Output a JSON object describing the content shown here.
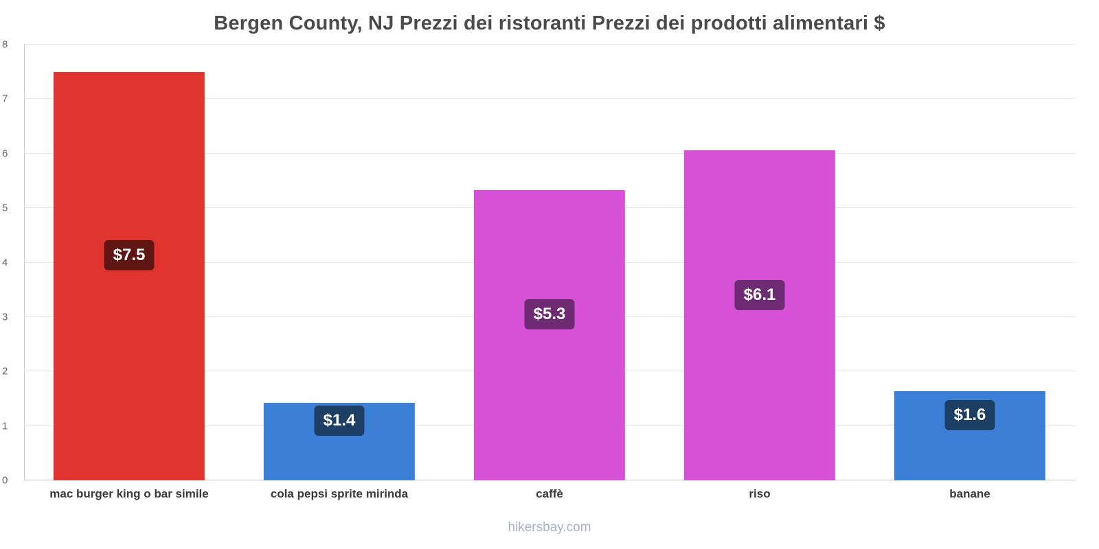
{
  "title": "Bergen County, NJ Prezzi dei ristoranti Prezzi dei prodotti alimentari $",
  "footer": "hikersbay.com",
  "chart_data": {
    "type": "bar",
    "title": "Bergen County, NJ Prezzi dei ristoranti Prezzi dei prodotti alimentari $",
    "xlabel": "",
    "ylabel": "",
    "ylim": [
      0,
      8
    ],
    "yticks": [
      0,
      1,
      2,
      3,
      4,
      5,
      6,
      7,
      8
    ],
    "grid": true,
    "legend_position": "none",
    "categories": [
      "mac burger king o bar simile",
      "cola pepsi sprite mirinda",
      "caffè",
      "riso",
      "banane"
    ],
    "values": [
      7.5,
      1.43,
      5.33,
      6.06,
      1.64
    ],
    "bars": [
      {
        "label": "mac burger king o bar simile",
        "value": 7.5,
        "display": "$7.5",
        "color": "#e0352e",
        "badge_color": "#5f1512"
      },
      {
        "label": "cola pepsi sprite mirinda",
        "value": 1.43,
        "display": "$1.4",
        "color": "#3c7fd6",
        "badge_color": "#1c3f63"
      },
      {
        "label": "caffè",
        "value": 5.33,
        "display": "$5.3",
        "color": "#d651d6",
        "badge_color": "#6f2a74"
      },
      {
        "label": "riso",
        "value": 6.06,
        "display": "$6.1",
        "color": "#d651d6",
        "badge_color": "#6f2a74"
      },
      {
        "label": "banane",
        "value": 1.64,
        "display": "$1.6",
        "color": "#3c7fd6",
        "badge_color": "#1c3f63"
      }
    ]
  }
}
